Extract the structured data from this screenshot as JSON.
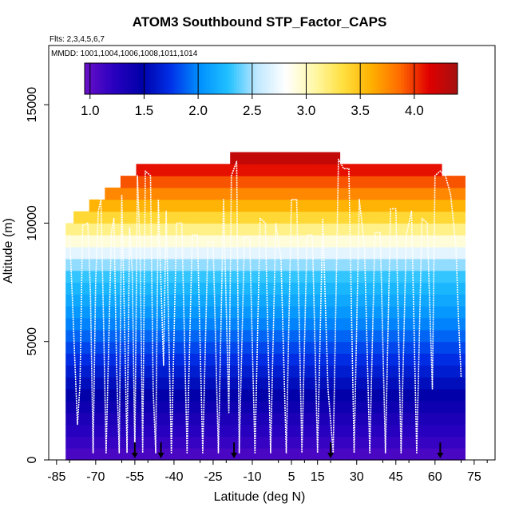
{
  "chart_data": {
    "type": "heatmap",
    "title": "ATOM3 Southbound STP_Factor_CAPS",
    "annotations": {
      "flights": "Flts: 2,3,4,5,6,7",
      "dates": "MMDD: 1001,1004,1006,1008,1011,1014"
    },
    "xlabel": "Latitude (deg N)",
    "ylabel": "Altitude (m)",
    "xlim": [
      -88,
      83
    ],
    "ylim": [
      0,
      17500
    ],
    "x_ticks": [
      -85,
      -70,
      -55,
      -40,
      -25,
      -10,
      5,
      15,
      30,
      45,
      60,
      75
    ],
    "y_ticks": [
      0,
      5000,
      10000,
      15000
    ],
    "colorbar": {
      "range": [
        0.95,
        4.4
      ],
      "ticks": [
        1.0,
        1.5,
        2.0,
        2.5,
        3.0,
        3.5,
        4.0
      ],
      "tick_labels": [
        "1.0",
        "1.5",
        "2.0",
        "2.5",
        "3.0",
        "3.5",
        "4.0"
      ],
      "colors": [
        "#6a0fc8",
        "#2a00c0",
        "#0000a8",
        "#0030e8",
        "#0090ff",
        "#20c0ff",
        "#bfe8ff",
        "#ffffff",
        "#fff8a8",
        "#ffe040",
        "#ffb000",
        "#ff6a00",
        "#e00000",
        "#a51010"
      ]
    },
    "profile_columns": [
      {
        "lat": -80,
        "top": 10000
      },
      {
        "lat": -77,
        "top": 10500
      },
      {
        "lat": -74,
        "top": 10500
      },
      {
        "lat": -71,
        "top": 11000
      },
      {
        "lat": -68,
        "top": 11000
      },
      {
        "lat": -65,
        "top": 11500
      },
      {
        "lat": -62,
        "top": 11500
      },
      {
        "lat": -59,
        "top": 12000
      },
      {
        "lat": -56,
        "top": 12000
      },
      {
        "lat": -53,
        "top": 12500
      },
      {
        "lat": -50,
        "top": 12500
      },
      {
        "lat": -47,
        "top": 12500
      },
      {
        "lat": -44,
        "top": 12500
      },
      {
        "lat": -41,
        "top": 12500
      },
      {
        "lat": -38,
        "top": 12500
      },
      {
        "lat": -35,
        "top": 12500
      },
      {
        "lat": -32,
        "top": 12500
      },
      {
        "lat": -29,
        "top": 12500
      },
      {
        "lat": -26,
        "top": 12500
      },
      {
        "lat": -23,
        "top": 12500
      },
      {
        "lat": -20,
        "top": 12500
      },
      {
        "lat": -17,
        "top": 13000
      },
      {
        "lat": -14,
        "top": 13000
      },
      {
        "lat": -11,
        "top": 13000
      },
      {
        "lat": -8,
        "top": 13000
      },
      {
        "lat": -5,
        "top": 13000
      },
      {
        "lat": -2,
        "top": 13000
      },
      {
        "lat": 1,
        "top": 13000
      },
      {
        "lat": 4,
        "top": 13000
      },
      {
        "lat": 7,
        "top": 13000
      },
      {
        "lat": 10,
        "top": 13000
      },
      {
        "lat": 13,
        "top": 13000
      },
      {
        "lat": 16,
        "top": 13000
      },
      {
        "lat": 19,
        "top": 13000
      },
      {
        "lat": 22,
        "top": 13000
      },
      {
        "lat": 25,
        "top": 12500
      },
      {
        "lat": 28,
        "top": 12500
      },
      {
        "lat": 31,
        "top": 12500
      },
      {
        "lat": 34,
        "top": 12500
      },
      {
        "lat": 37,
        "top": 12500
      },
      {
        "lat": 40,
        "top": 12500
      },
      {
        "lat": 43,
        "top": 12500
      },
      {
        "lat": 46,
        "top": 12500
      },
      {
        "lat": 49,
        "top": 12500
      },
      {
        "lat": 52,
        "top": 12500
      },
      {
        "lat": 55,
        "top": 12500
      },
      {
        "lat": 58,
        "top": 12500
      },
      {
        "lat": 61,
        "top": 12500
      },
      {
        "lat": 64,
        "top": 12000
      },
      {
        "lat": 67,
        "top": 12000
      },
      {
        "lat": 70,
        "top": 12000
      }
    ],
    "flight_track": [
      {
        "lat": -80,
        "alt": 9500
      },
      {
        "lat": -79,
        "alt": 7000
      },
      {
        "lat": -78,
        "alt": 4200
      },
      {
        "lat": -77,
        "alt": 1500
      },
      {
        "lat": -76,
        "alt": 3200
      },
      {
        "lat": -75,
        "alt": 9900
      },
      {
        "lat": -73,
        "alt": 10000
      },
      {
        "lat": -72,
        "alt": 7000
      },
      {
        "lat": -71,
        "alt": 300
      },
      {
        "lat": -70,
        "alt": 7500
      },
      {
        "lat": -69,
        "alt": 10500
      },
      {
        "lat": -68,
        "alt": 11000
      },
      {
        "lat": -67,
        "alt": 6000
      },
      {
        "lat": -66,
        "alt": 300
      },
      {
        "lat": -64,
        "alt": 9600
      },
      {
        "lat": -63,
        "alt": 10200
      },
      {
        "lat": -62,
        "alt": 4000
      },
      {
        "lat": -61,
        "alt": 300
      },
      {
        "lat": -60,
        "alt": 11200
      },
      {
        "lat": -59,
        "alt": 6000
      },
      {
        "lat": -58,
        "alt": 300
      },
      {
        "lat": -57,
        "alt": 9800
      },
      {
        "lat": -56,
        "alt": 8000
      },
      {
        "lat": -55,
        "alt": 300
      },
      {
        "lat": -54,
        "alt": 12000
      },
      {
        "lat": -53,
        "alt": 9000
      },
      {
        "lat": -52,
        "alt": 300
      },
      {
        "lat": -51,
        "alt": 12200
      },
      {
        "lat": -49,
        "alt": 12000
      },
      {
        "lat": -48,
        "alt": 3000
      },
      {
        "lat": -47,
        "alt": 300
      },
      {
        "lat": -46,
        "alt": 11000
      },
      {
        "lat": -44,
        "alt": 4000
      },
      {
        "lat": -43,
        "alt": 10500
      },
      {
        "lat": -41,
        "alt": 300
      },
      {
        "lat": -39,
        "alt": 10000
      },
      {
        "lat": -37,
        "alt": 10000
      },
      {
        "lat": -35,
        "alt": 300
      },
      {
        "lat": -33,
        "alt": 9500
      },
      {
        "lat": -31,
        "alt": 9500
      },
      {
        "lat": -29,
        "alt": 300
      },
      {
        "lat": -27,
        "alt": 9200
      },
      {
        "lat": -25,
        "alt": 9200
      },
      {
        "lat": -23,
        "alt": 300
      },
      {
        "lat": -21,
        "alt": 11000
      },
      {
        "lat": -19,
        "alt": 2000
      },
      {
        "lat": -18,
        "alt": 12000
      },
      {
        "lat": -16,
        "alt": 12600
      },
      {
        "lat": -15,
        "alt": 300
      },
      {
        "lat": -13,
        "alt": 9400
      },
      {
        "lat": -11,
        "alt": 9400
      },
      {
        "lat": -9,
        "alt": 300
      },
      {
        "lat": -7,
        "alt": 10200
      },
      {
        "lat": -5,
        "alt": 10000
      },
      {
        "lat": -3,
        "alt": 300
      },
      {
        "lat": -1,
        "alt": 10000
      },
      {
        "lat": 1,
        "alt": 8500
      },
      {
        "lat": 3,
        "alt": 300
      },
      {
        "lat": 5,
        "alt": 11000
      },
      {
        "lat": 7,
        "alt": 11000
      },
      {
        "lat": 9,
        "alt": 300
      },
      {
        "lat": 11,
        "alt": 9500
      },
      {
        "lat": 13,
        "alt": 9500
      },
      {
        "lat": 15,
        "alt": 300
      },
      {
        "lat": 17,
        "alt": 10200
      },
      {
        "lat": 19,
        "alt": 3000
      },
      {
        "lat": 21,
        "alt": 300
      },
      {
        "lat": 23,
        "alt": 12700
      },
      {
        "lat": 25,
        "alt": 12300
      },
      {
        "lat": 27,
        "alt": 12300
      },
      {
        "lat": 29,
        "alt": 300
      },
      {
        "lat": 31,
        "alt": 11000
      },
      {
        "lat": 33,
        "alt": 9000
      },
      {
        "lat": 35,
        "alt": 300
      },
      {
        "lat": 37,
        "alt": 9600
      },
      {
        "lat": 39,
        "alt": 9600
      },
      {
        "lat": 41,
        "alt": 300
      },
      {
        "lat": 43,
        "alt": 10600
      },
      {
        "lat": 45,
        "alt": 10600
      },
      {
        "lat": 47,
        "alt": 300
      },
      {
        "lat": 49,
        "alt": 9500
      },
      {
        "lat": 51,
        "alt": 10500
      },
      {
        "lat": 53,
        "alt": 300
      },
      {
        "lat": 55,
        "alt": 10200
      },
      {
        "lat": 57,
        "alt": 10000
      },
      {
        "lat": 59,
        "alt": 3000
      },
      {
        "lat": 60,
        "alt": 12000
      },
      {
        "lat": 62,
        "alt": 12200
      },
      {
        "lat": 64,
        "alt": 12000
      },
      {
        "lat": 66,
        "alt": 11200
      },
      {
        "lat": 68,
        "alt": 9000
      },
      {
        "lat": 69,
        "alt": 6000
      },
      {
        "lat": 70,
        "alt": 3500
      }
    ],
    "marker_lats": [
      -55,
      -45,
      -17,
      20,
      62
    ]
  }
}
